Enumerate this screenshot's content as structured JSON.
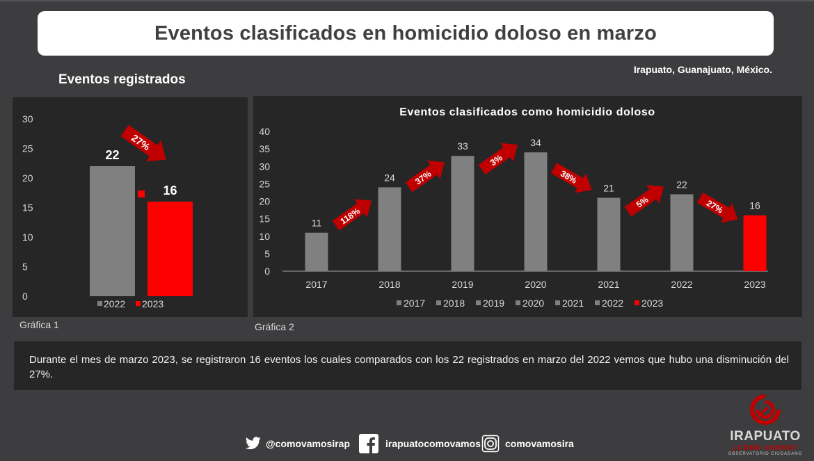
{
  "header": {
    "title": "Eventos clasificados en homicidio doloso en marzo",
    "location": "Irapuato, Guanajuato, México.",
    "section_title": "Eventos registrados"
  },
  "captions": {
    "chart1": "Gráfica 1",
    "chart2": "Gráfica 2"
  },
  "summary": "Durante el mes de marzo 2023, se registraron 16 eventos los cuales comparados con los 22 registrados en marzo del 2022 vemos que hubo una disminución del 27%.",
  "footer": {
    "twitter": "@comovamosirap",
    "facebook": "irapuatocomovamos",
    "instagram": "comovamosira",
    "logo": {
      "line1": "IRAPUATO",
      "line2": "¿CÓMO VAMOS?",
      "line3": "OBSERVATORIO CIUDADANO"
    }
  },
  "colors": {
    "gray_bar": "#808080",
    "red_bar": "#ff0000",
    "arrow": "#c00000",
    "panel_bg": "#262626",
    "page_bg": "#3d3d3f"
  },
  "chart_data": [
    {
      "type": "bar",
      "title": "",
      "categories": [
        "2022",
        "2023"
      ],
      "values": [
        22,
        16
      ],
      "colors": [
        "#808080",
        "#ff0000"
      ],
      "ylim": [
        0,
        30
      ],
      "yticks": [
        "0",
        "5",
        "10",
        "15",
        "20",
        "25",
        "30"
      ],
      "legend": [
        "2022",
        "2023"
      ],
      "legend_position": "bottom",
      "annotations": [
        {
          "label": "27%",
          "direction": "down",
          "from": "2022",
          "to": "2023"
        }
      ]
    },
    {
      "type": "bar",
      "title": "Eventos clasificados como homicidio doloso",
      "categories": [
        "2017",
        "2018",
        "2019",
        "2020",
        "2021",
        "2022",
        "2023"
      ],
      "values": [
        11,
        24,
        33,
        34,
        21,
        22,
        16
      ],
      "colors": [
        "#808080",
        "#808080",
        "#808080",
        "#808080",
        "#808080",
        "#808080",
        "#ff0000"
      ],
      "ylim": [
        0,
        40
      ],
      "yticks": [
        "0",
        "5",
        "10",
        "15",
        "20",
        "25",
        "30",
        "35",
        "40"
      ],
      "legend": [
        "2017",
        "2018",
        "2019",
        "2020",
        "2021",
        "2022",
        "2023"
      ],
      "legend_position": "bottom",
      "annotations": [
        {
          "label": "118%",
          "direction": "up"
        },
        {
          "label": "37%",
          "direction": "up"
        },
        {
          "label": "3%",
          "direction": "up"
        },
        {
          "label": "38%",
          "direction": "down"
        },
        {
          "label": "5%",
          "direction": "up"
        },
        {
          "label": "27%",
          "direction": "down"
        }
      ]
    }
  ]
}
